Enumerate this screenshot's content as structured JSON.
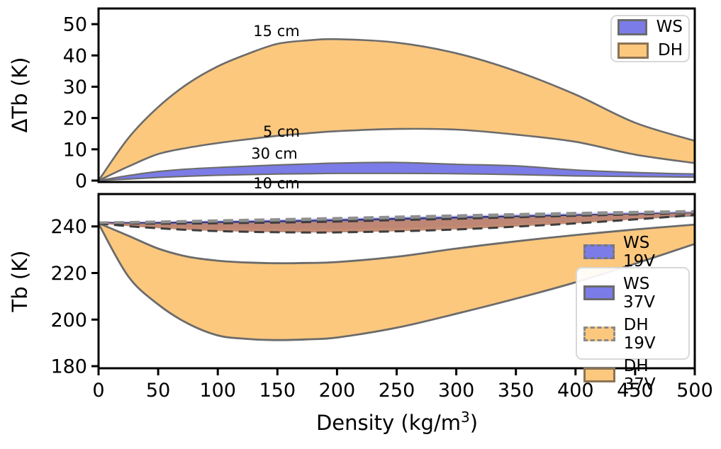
{
  "figure": {
    "background": "#ffffff"
  },
  "chart_data": [
    {
      "type": "area",
      "title": "",
      "ylabel": "ΔTb (K)",
      "xlim": [
        0,
        500
      ],
      "ylim": [
        -0.45,
        55.0
      ],
      "yticks": [
        0,
        10,
        20,
        30,
        40,
        50
      ],
      "yticklabels": [
        "0",
        "10",
        "20",
        "30",
        "40",
        "50"
      ],
      "xticks": [],
      "xticklabels": [],
      "grid": false,
      "x": [
        0,
        25,
        50,
        75,
        100,
        125,
        150,
        175,
        200,
        250,
        300,
        350,
        400,
        450,
        500
      ],
      "series": [
        {
          "id": "dh",
          "name": "DH",
          "fill": "#fbc87e",
          "fill_opacity": 1,
          "edge": {
            "color": "#6b6b6b",
            "width": 2.6
          },
          "upper": [
            0,
            13.6,
            23.5,
            31.0,
            36.5,
            40.5,
            43.7,
            44.8,
            45.2,
            44.1,
            40.7,
            35.0,
            27.5,
            18.5,
            12.7
          ],
          "lower": [
            0,
            4.5,
            8.5,
            10.5,
            12.0,
            13.2,
            14.3,
            15.1,
            15.8,
            16.5,
            16.3,
            14.7,
            12.4,
            8.3,
            5.6
          ]
        },
        {
          "id": "ws",
          "name": "WS",
          "fill": "#7b7ce8",
          "fill_opacity": 1,
          "edge": {
            "color": "#6b6b6b",
            "width": 2.1
          },
          "upper": [
            0,
            1.6,
            2.9,
            3.7,
            4.2,
            4.6,
            5.0,
            5.3,
            5.6,
            5.8,
            5.2,
            4.7,
            3.4,
            2.6,
            2.1
          ],
          "lower": [
            0,
            0.5,
            1.0,
            1.4,
            1.7,
            1.9,
            2.1,
            2.2,
            2.3,
            2.3,
            2.2,
            1.9,
            1.5,
            1.3,
            1.1
          ]
        }
      ],
      "annotations": [
        {
          "text": "15 cm",
          "x": 149,
          "y": 47.7
        },
        {
          "text": "5 cm",
          "x": 153,
          "y": 15.6
        },
        {
          "text": "30 cm",
          "x": 147,
          "y": 8.6
        },
        {
          "text": "10 cm",
          "x": 149,
          "y": -0.9
        }
      ],
      "legend": {
        "position": "upper right",
        "entries": [
          {
            "label": "WS",
            "fill": "#7b7ce8",
            "edge": "#6b6b6b",
            "dashed": false
          },
          {
            "label": "DH",
            "fill": "#fbc87e",
            "edge": "#8a7354",
            "dashed": false
          }
        ]
      }
    },
    {
      "type": "area",
      "title": "",
      "ylabel": "Tb (K)",
      "xlabel_parts": {
        "prefix": "Density (kg/m",
        "sup": "3",
        "suffix": ")"
      },
      "xlim": [
        0,
        500
      ],
      "ylim": [
        179.1,
        253.9
      ],
      "yticks": [
        180,
        200,
        220,
        240
      ],
      "yticklabels": [
        "180",
        "200",
        "220",
        "240"
      ],
      "xticks": [
        0,
        50,
        100,
        150,
        200,
        250,
        300,
        350,
        400,
        450,
        500
      ],
      "xticklabels": [
        "0",
        "50",
        "100",
        "150",
        "200",
        "250",
        "300",
        "350",
        "400",
        "450",
        "500"
      ],
      "grid": false,
      "x": [
        0,
        25,
        50,
        75,
        100,
        125,
        150,
        175,
        200,
        250,
        300,
        350,
        400,
        450,
        500
      ],
      "series": [
        {
          "id": "dh-37v",
          "name": "DH 37V",
          "fill": "#fbc87e",
          "fill_opacity": 1,
          "edge": {
            "color": "#6b6b6b",
            "width": 2.8
          },
          "upper": [
            241.4,
            236.0,
            230.5,
            227.0,
            225.3,
            224.5,
            224.2,
            224.3,
            224.7,
            227.0,
            230.5,
            233.6,
            236.3,
            238.7,
            240.8
          ],
          "lower": [
            241.2,
            218.5,
            206.5,
            198.3,
            193.2,
            191.7,
            191.2,
            191.5,
            192.3,
            196.5,
            202.5,
            209.0,
            216.0,
            224.0,
            232.5
          ]
        },
        {
          "id": "ws-37v",
          "name": "WS 37V",
          "fill": "#7b7ce8",
          "fill_opacity": 1,
          "edge_upper": {
            "color": "#34347a",
            "width": 2.4
          },
          "edge_lower": {
            "color": "#8f8f8f",
            "width": 1.5
          },
          "upper": [
            241.6,
            241.55,
            241.6,
            241.7,
            241.85,
            242.0,
            242.2,
            242.45,
            242.7,
            243.25,
            243.85,
            244.35,
            244.85,
            245.3,
            245.75
          ],
          "lower": [
            241.4,
            240.7,
            240.1,
            239.7,
            239.4,
            239.2,
            239.05,
            239.0,
            239.1,
            239.5,
            240.2,
            241.1,
            242.15,
            243.3,
            244.5
          ]
        },
        {
          "id": "dh-19v",
          "name": "DH 19V",
          "fill": "#c2876f",
          "fill_opacity": 0.95,
          "edge": {
            "color": "#3d3d3d",
            "width": 3,
            "dash": "14 8"
          },
          "upper": [
            241.5,
            241.3,
            241.2,
            241.25,
            241.35,
            241.5,
            241.65,
            241.85,
            242.1,
            242.7,
            243.3,
            243.95,
            244.6,
            245.2,
            245.8
          ],
          "lower": [
            241.3,
            240.1,
            239.2,
            238.5,
            238.0,
            237.7,
            237.5,
            237.4,
            237.45,
            237.9,
            238.7,
            239.9,
            241.3,
            243.0,
            244.9
          ]
        },
        {
          "id": "ws-19v",
          "name": "WS 19V",
          "fill": "#7b7ce8",
          "fill_opacity": 0.4,
          "edge": {
            "color": "#8f8f8f",
            "width": 3,
            "dash": "14 8"
          },
          "upper": [
            241.7,
            241.9,
            242.1,
            242.35,
            242.6,
            242.85,
            243.1,
            243.35,
            243.6,
            244.2,
            244.75,
            245.3,
            245.8,
            246.25,
            246.6
          ],
          "lower": [
            241.5,
            241.6,
            241.75,
            241.95,
            242.15,
            242.35,
            242.55,
            242.8,
            243.05,
            243.6,
            244.15,
            244.7,
            245.2,
            245.7,
            246.1
          ]
        }
      ],
      "annotations": [],
      "legend": {
        "position": "lower right",
        "entries": [
          {
            "label": "WS 19V",
            "fill": "#7b7ce8",
            "edge": "#777777",
            "dashed": true
          },
          {
            "label": "WS 37V",
            "fill": "#7b7ce8",
            "edge": "#6b6b6b",
            "dashed": false
          },
          {
            "label": "DH 19V",
            "fill": "#fbc87e",
            "edge": "#8a8a8a",
            "dashed": true
          },
          {
            "label": "DH 37V",
            "fill": "#fbc87e",
            "edge": "#8a7354",
            "dashed": false
          }
        ]
      }
    }
  ]
}
